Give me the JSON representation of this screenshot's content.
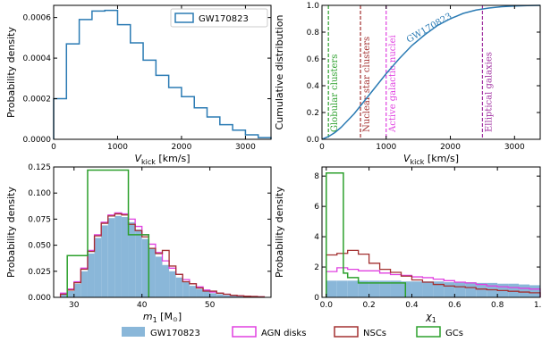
{
  "chart_data": [
    {
      "id": "a",
      "type": "histogram",
      "xlabel_main": "V",
      "xlabel_sub": "kick",
      "xlabel_rest": " [km/s]",
      "ylabel": "Probability density",
      "xlim": [
        0,
        3400
      ],
      "ylim": [
        0,
        0.00066
      ],
      "xticks": [
        0,
        1000,
        2000,
        3000
      ],
      "yticks": [
        0.0,
        0.0002,
        0.0004,
        0.0006
      ],
      "ytick_labels": [
        "0.0000",
        "0.0002",
        "0.0004",
        "0.0006"
      ],
      "legend": "GW170823",
      "legend_position": "top-right",
      "color": "#2b7bb4",
      "bin_edges": [
        0,
        200,
        400,
        600,
        800,
        1000,
        1200,
        1400,
        1600,
        1800,
        2000,
        2200,
        2400,
        2600,
        2800,
        3000,
        3200,
        3400
      ],
      "values": [
        0.0002,
        0.00047,
        0.00059,
        0.000632,
        0.000635,
        0.000565,
        0.000475,
        0.00039,
        0.000315,
        0.000255,
        0.00021,
        0.000155,
        0.00011,
        7.2e-05,
        4.5e-05,
        2.2e-05,
        8e-06
      ]
    },
    {
      "id": "b",
      "type": "line",
      "xlabel_main": "V",
      "xlabel_sub": "kick",
      "xlabel_rest": " [km/s]",
      "ylabel": "Cumulative distribution",
      "xlim": [
        0,
        3400
      ],
      "ylim": [
        0,
        1.0
      ],
      "xticks": [
        0,
        1000,
        2000,
        3000
      ],
      "yticks": [
        0.0,
        0.2,
        0.4,
        0.6,
        0.8,
        1.0
      ],
      "ytick_labels": [
        "0.0",
        "0.2",
        "0.4",
        "0.6",
        "0.8",
        "1.0"
      ],
      "curve_label": "GW170823",
      "curve_color": "#2b7bb4",
      "x": [
        0,
        100,
        200,
        300,
        400,
        500,
        600,
        700,
        800,
        900,
        1000,
        1200,
        1400,
        1600,
        1800,
        2000,
        2200,
        2400,
        2600,
        2800,
        3000,
        3200,
        3400
      ],
      "y": [
        0.0,
        0.02,
        0.05,
        0.09,
        0.14,
        0.19,
        0.25,
        0.31,
        0.37,
        0.43,
        0.49,
        0.6,
        0.7,
        0.78,
        0.85,
        0.9,
        0.94,
        0.965,
        0.98,
        0.99,
        0.995,
        0.998,
        1.0
      ],
      "vlines": [
        {
          "x": 100,
          "label": "Globular clusters",
          "color": "#2ca02c"
        },
        {
          "x": 600,
          "label": "Nuclear star clusters",
          "color": "#a33030"
        },
        {
          "x": 1000,
          "label": "Active galactic nuclei",
          "color": "#e040e0"
        },
        {
          "x": 2500,
          "label": "Elliptical galaxies",
          "color": "#a030a0"
        }
      ]
    },
    {
      "id": "c",
      "type": "histogram",
      "xlabel_main": "m",
      "xlabel_sub": "1",
      "xlabel_rest": " [M",
      "xlabel_tail": "]",
      "ylabel": "Probability density",
      "xlim": [
        27,
        59
      ],
      "ylim": [
        0,
        0.125
      ],
      "xticks": [
        30,
        40,
        50
      ],
      "yticks": [
        0.0,
        0.025,
        0.05,
        0.075,
        0.1,
        0.125
      ],
      "ytick_labels": [
        "0.000",
        "0.025",
        "0.050",
        "0.075",
        "0.100",
        "0.125"
      ],
      "bin_edges": [
        28,
        29,
        30,
        31,
        32,
        33,
        34,
        35,
        36,
        37,
        38,
        39,
        40,
        41,
        42,
        43,
        44,
        45,
        46,
        47,
        48,
        49,
        50,
        51,
        52,
        53,
        54,
        55,
        56,
        57,
        58
      ],
      "series": [
        {
          "name": "GW170823",
          "style": "fill",
          "color": "#8ab7d9",
          "values": [
            0.003,
            0.006,
            0.013,
            0.025,
            0.042,
            0.057,
            0.069,
            0.076,
            0.078,
            0.077,
            0.072,
            0.065,
            0.056,
            0.047,
            0.039,
            0.031,
            0.025,
            0.019,
            0.015,
            0.011,
            0.008,
            0.006,
            0.004,
            0.003,
            0.002,
            0.0015,
            0.001,
            0.0008,
            0.0005,
            0.0003
          ]
        },
        {
          "name": "AGN disks",
          "style": "step",
          "color": "#e040e0",
          "values": [
            0.004,
            0.008,
            0.015,
            0.028,
            0.045,
            0.06,
            0.072,
            0.079,
            0.081,
            0.08,
            0.075,
            0.068,
            0.06,
            0.051,
            0.043,
            0.035,
            0.028,
            0.022,
            0.017,
            0.013,
            0.01,
            0.007,
            0.005,
            0.004,
            0.003,
            0.002,
            0.0015,
            0.001,
            0.0008,
            0.0005
          ]
        },
        {
          "name": "NSCs",
          "style": "step",
          "color": "#a33030",
          "values": [
            0.003,
            0.007,
            0.014,
            0.027,
            0.044,
            0.059,
            0.071,
            0.078,
            0.08,
            0.079,
            0.07,
            0.064,
            0.058,
            0.047,
            0.042,
            0.045,
            0.03,
            0.022,
            0.015,
            0.013,
            0.009,
            0.006,
            0.006,
            0.004,
            0.003,
            0.002,
            0.0015,
            0.001,
            0.0008,
            0.0005
          ]
        }
      ],
      "extra_series": {
        "name": "GCs",
        "style": "step",
        "color": "#2ca02c",
        "bin_edges": [
          29,
          32,
          38,
          41
        ],
        "values": [
          0.04,
          0.122,
          0.06
        ]
      }
    },
    {
      "id": "d",
      "type": "histogram",
      "xlabel_main": "χ",
      "xlabel_sub": "1",
      "ylabel": "Probability density",
      "xlim": [
        -0.02,
        1.0
      ],
      "ylim": [
        0,
        8.6
      ],
      "xticks": [
        0.0,
        0.2,
        0.4,
        0.6,
        0.8,
        1.0
      ],
      "xtick_labels": [
        "0.0",
        "0.2",
        "0.4",
        "0.6",
        "0.8",
        "1.0"
      ],
      "yticks": [
        0,
        2,
        4,
        6,
        8
      ],
      "ytick_labels": [
        "0",
        "2",
        "4",
        "6",
        "8"
      ],
      "bin_edges": [
        0.0,
        0.05,
        0.1,
        0.15,
        0.2,
        0.25,
        0.3,
        0.35,
        0.4,
        0.45,
        0.5,
        0.55,
        0.6,
        0.65,
        0.7,
        0.75,
        0.8,
        0.85,
        0.9,
        0.95,
        1.0
      ],
      "series": [
        {
          "name": "GW170823",
          "style": "fill",
          "color": "#8ab7d9",
          "values": [
            1.1,
            1.1,
            1.1,
            1.1,
            1.1,
            1.1,
            1.1,
            1.05,
            1.05,
            1.05,
            1.05,
            1.0,
            1.0,
            1.0,
            0.95,
            0.95,
            0.9,
            0.9,
            0.85,
            0.8
          ]
        },
        {
          "name": "AGN disks",
          "style": "step",
          "color": "#e040e0",
          "values": [
            1.7,
            1.95,
            1.85,
            1.75,
            1.75,
            1.6,
            1.5,
            1.45,
            1.35,
            1.3,
            1.2,
            1.1,
            1.0,
            0.95,
            0.85,
            0.75,
            0.7,
            0.65,
            0.6,
            0.55
          ]
        },
        {
          "name": "NSCs",
          "style": "step",
          "color": "#a33030",
          "values": [
            2.8,
            2.9,
            3.1,
            2.85,
            2.25,
            1.85,
            1.65,
            1.4,
            1.15,
            1.0,
            0.85,
            0.75,
            0.7,
            0.65,
            0.55,
            0.5,
            0.45,
            0.4,
            0.35,
            0.3
          ]
        }
      ],
      "extra_series": {
        "name": "GCs",
        "style": "step",
        "color": "#2ca02c",
        "bin_edges": [
          0.0,
          0.08,
          0.1,
          0.15,
          0.37
        ],
        "values": [
          8.2,
          1.6,
          1.3,
          0.95
        ]
      }
    }
  ],
  "figure_legend": [
    {
      "label": "GW170823",
      "style": "fill",
      "color": "#8ab7d9"
    },
    {
      "label": "AGN disks",
      "style": "step",
      "color": "#e040e0"
    },
    {
      "label": "NSCs",
      "style": "step",
      "color": "#a33030"
    },
    {
      "label": "GCs",
      "style": "step",
      "color": "#2ca02c"
    }
  ]
}
